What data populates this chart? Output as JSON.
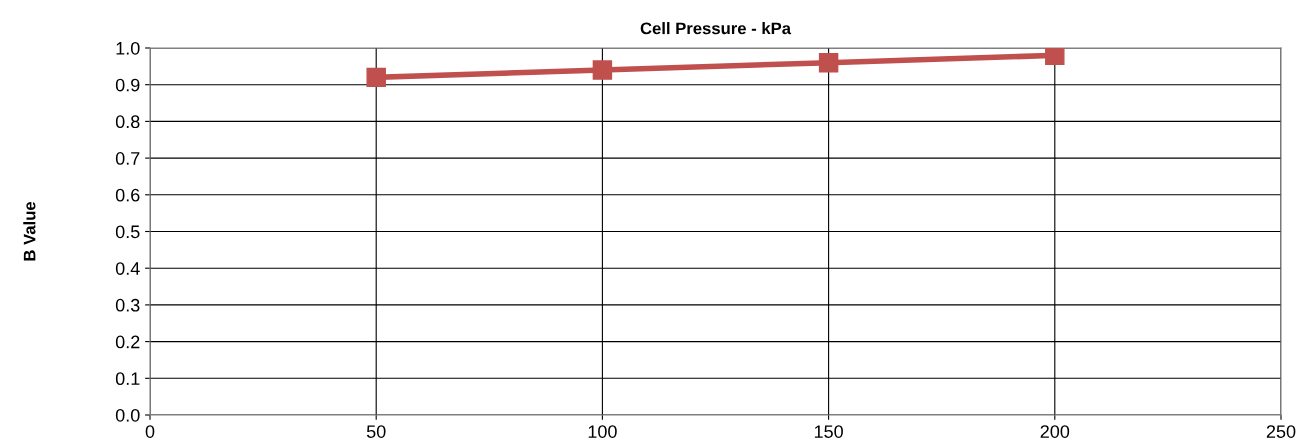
{
  "chart_data": {
    "type": "line",
    "title": "Cell Pressure - kPa",
    "ylabel": "B Value",
    "x": [
      50,
      100,
      150,
      200
    ],
    "series": [
      {
        "color": "#c0504d",
        "values": [
          0.92,
          0.94,
          0.96,
          0.98
        ]
      }
    ],
    "xlim": [
      0,
      250
    ],
    "xticks": [
      0,
      50,
      100,
      150,
      200,
      250
    ],
    "ylim": [
      0.0,
      1.0
    ],
    "yticks": [
      {
        "value": 0.0,
        "label": "0.0"
      },
      {
        "value": 0.1,
        "label": "0.1"
      },
      {
        "value": 0.2,
        "label": "0.2"
      },
      {
        "value": 0.3,
        "label": "0.3"
      },
      {
        "value": 0.4,
        "label": "0.4"
      },
      {
        "value": 0.5,
        "label": "0.5"
      },
      {
        "value": 0.6,
        "label": "0.6"
      },
      {
        "value": 0.7,
        "label": "0.7"
      },
      {
        "value": 0.8,
        "label": "0.8"
      },
      {
        "value": 0.9,
        "label": "0.9"
      },
      {
        "value": 1.0,
        "label": "1.0"
      }
    ],
    "grid": true,
    "marker": "square",
    "line_style": "solid"
  }
}
